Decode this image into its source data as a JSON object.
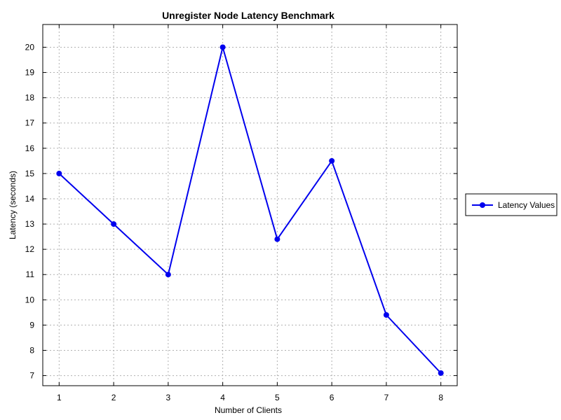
{
  "chart_data": {
    "type": "line",
    "title": "Unregister Node Latency Benchmark",
    "xlabel": "Number of Clients",
    "ylabel": "Latency (seconds)",
    "x": [
      1,
      2,
      3,
      4,
      5,
      6,
      7,
      8
    ],
    "xlim": [
      0.7,
      8.3
    ],
    "ylim": [
      6.6,
      20.9
    ],
    "xticks": [
      1,
      2,
      3,
      4,
      5,
      6,
      7,
      8
    ],
    "yticks": [
      7,
      8,
      9,
      10,
      11,
      12,
      13,
      14,
      15,
      16,
      17,
      18,
      19,
      20
    ],
    "grid": true,
    "legend_position": "right",
    "series": [
      {
        "name": "Latency Values",
        "color": "#0000ee",
        "values": [
          15.0,
          13.0,
          11.0,
          20.0,
          12.4,
          15.5,
          9.4,
          7.1
        ]
      }
    ]
  }
}
